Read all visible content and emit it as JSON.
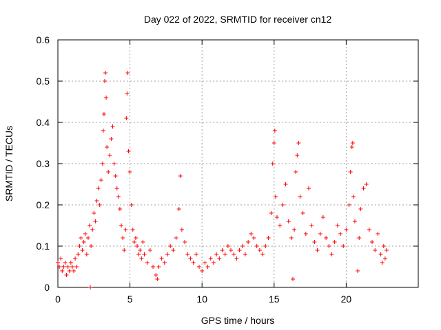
{
  "chart_data": {
    "type": "scatter",
    "title": "Day 022 of 2022, SRMTID for receiver cn12",
    "xlabel": "GPS time / hours",
    "ylabel": "SRMTID / TECUs",
    "xlim": [
      0,
      25
    ],
    "ylim": [
      0,
      0.6
    ],
    "xticks": [
      0,
      5,
      10,
      15,
      20
    ],
    "xtick_labels": [
      "0",
      "5",
      "10",
      "15",
      "20"
    ],
    "yticks": [
      0,
      0.1,
      0.2,
      0.3,
      0.4,
      0.5,
      0.6
    ],
    "ytick_labels": [
      "0",
      "0.1",
      "0.2",
      "0.3",
      "0.4",
      "0.5",
      "0.6"
    ],
    "grid": true,
    "marker": "+",
    "color": "#ff0000",
    "series": [
      {
        "name": "SRMTID",
        "points": [
          [
            0.0,
            0.06
          ],
          [
            0.1,
            0.05
          ],
          [
            0.2,
            0.07
          ],
          [
            0.3,
            0.04
          ],
          [
            0.4,
            0.05
          ],
          [
            0.5,
            0.06
          ],
          [
            0.6,
            0.03
          ],
          [
            0.7,
            0.05
          ],
          [
            0.8,
            0.04
          ],
          [
            0.9,
            0.06
          ],
          [
            1.0,
            0.05
          ],
          [
            1.1,
            0.04
          ],
          [
            1.2,
            0.07
          ],
          [
            1.3,
            0.05
          ],
          [
            1.4,
            0.08
          ],
          [
            1.5,
            0.1
          ],
          [
            1.6,
            0.12
          ],
          [
            1.7,
            0.09
          ],
          [
            1.8,
            0.11
          ],
          [
            1.9,
            0.13
          ],
          [
            2.0,
            0.08
          ],
          [
            2.1,
            0.12
          ],
          [
            2.2,
            0.15
          ],
          [
            2.25,
            0.0
          ],
          [
            2.3,
            0.1
          ],
          [
            2.4,
            0.14
          ],
          [
            2.5,
            0.18
          ],
          [
            2.6,
            0.16
          ],
          [
            2.7,
            0.21
          ],
          [
            2.8,
            0.24
          ],
          [
            2.9,
            0.2
          ],
          [
            3.0,
            0.26
          ],
          [
            3.1,
            0.3
          ],
          [
            3.15,
            0.38
          ],
          [
            3.2,
            0.42
          ],
          [
            3.25,
            0.5
          ],
          [
            3.3,
            0.52
          ],
          [
            3.35,
            0.46
          ],
          [
            3.4,
            0.34
          ],
          [
            3.5,
            0.28
          ],
          [
            3.6,
            0.32
          ],
          [
            3.7,
            0.36
          ],
          [
            3.8,
            0.39
          ],
          [
            3.9,
            0.3
          ],
          [
            4.0,
            0.27
          ],
          [
            4.1,
            0.24
          ],
          [
            4.2,
            0.22
          ],
          [
            4.3,
            0.19
          ],
          [
            4.4,
            0.15
          ],
          [
            4.5,
            0.12
          ],
          [
            4.6,
            0.09
          ],
          [
            4.7,
            0.14
          ],
          [
            4.75,
            0.41
          ],
          [
            4.8,
            0.47
          ],
          [
            4.85,
            0.52
          ],
          [
            4.9,
            0.33
          ],
          [
            5.0,
            0.28
          ],
          [
            5.1,
            0.2
          ],
          [
            5.2,
            0.14
          ],
          [
            5.3,
            0.11
          ],
          [
            5.4,
            0.12
          ],
          [
            5.5,
            0.1
          ],
          [
            5.6,
            0.08
          ],
          [
            5.7,
            0.09
          ],
          [
            5.8,
            0.07
          ],
          [
            5.9,
            0.11
          ],
          [
            6.0,
            0.08
          ],
          [
            6.2,
            0.06
          ],
          [
            6.4,
            0.09
          ],
          [
            6.6,
            0.05
          ],
          [
            6.8,
            0.03
          ],
          [
            6.9,
            0.02
          ],
          [
            7.0,
            0.05
          ],
          [
            7.2,
            0.07
          ],
          [
            7.4,
            0.06
          ],
          [
            7.6,
            0.08
          ],
          [
            7.8,
            0.1
          ],
          [
            8.0,
            0.09
          ],
          [
            8.2,
            0.12
          ],
          [
            8.4,
            0.19
          ],
          [
            8.5,
            0.27
          ],
          [
            8.6,
            0.14
          ],
          [
            8.8,
            0.11
          ],
          [
            9.0,
            0.08
          ],
          [
            9.2,
            0.07
          ],
          [
            9.4,
            0.06
          ],
          [
            9.6,
            0.08
          ],
          [
            9.8,
            0.05
          ],
          [
            10.0,
            0.04
          ],
          [
            10.2,
            0.06
          ],
          [
            10.4,
            0.05
          ],
          [
            10.6,
            0.07
          ],
          [
            10.8,
            0.06
          ],
          [
            11.0,
            0.08
          ],
          [
            11.2,
            0.07
          ],
          [
            11.4,
            0.09
          ],
          [
            11.6,
            0.08
          ],
          [
            11.8,
            0.1
          ],
          [
            12.0,
            0.09
          ],
          [
            12.2,
            0.08
          ],
          [
            12.4,
            0.07
          ],
          [
            12.6,
            0.09
          ],
          [
            12.8,
            0.1
          ],
          [
            13.0,
            0.08
          ],
          [
            13.2,
            0.11
          ],
          [
            13.4,
            0.13
          ],
          [
            13.6,
            0.12
          ],
          [
            13.8,
            0.1
          ],
          [
            14.0,
            0.09
          ],
          [
            14.2,
            0.08
          ],
          [
            14.4,
            0.1
          ],
          [
            14.6,
            0.12
          ],
          [
            14.8,
            0.18
          ],
          [
            14.9,
            0.3
          ],
          [
            15.0,
            0.35
          ],
          [
            15.05,
            0.38
          ],
          [
            15.1,
            0.22
          ],
          [
            15.2,
            0.17
          ],
          [
            15.4,
            0.15
          ],
          [
            15.6,
            0.2
          ],
          [
            15.8,
            0.25
          ],
          [
            16.0,
            0.16
          ],
          [
            16.2,
            0.12
          ],
          [
            16.3,
            0.02
          ],
          [
            16.4,
            0.14
          ],
          [
            16.5,
            0.28
          ],
          [
            16.6,
            0.32
          ],
          [
            16.7,
            0.35
          ],
          [
            16.8,
            0.22
          ],
          [
            17.0,
            0.18
          ],
          [
            17.2,
            0.13
          ],
          [
            17.4,
            0.24
          ],
          [
            17.6,
            0.15
          ],
          [
            17.8,
            0.11
          ],
          [
            18.0,
            0.09
          ],
          [
            18.2,
            0.13
          ],
          [
            18.4,
            0.17
          ],
          [
            18.6,
            0.12
          ],
          [
            18.8,
            0.1
          ],
          [
            19.0,
            0.08
          ],
          [
            19.2,
            0.11
          ],
          [
            19.4,
            0.15
          ],
          [
            19.6,
            0.13
          ],
          [
            19.8,
            0.1
          ],
          [
            20.0,
            0.14
          ],
          [
            20.2,
            0.2
          ],
          [
            20.3,
            0.28
          ],
          [
            20.4,
            0.34
          ],
          [
            20.45,
            0.35
          ],
          [
            20.5,
            0.22
          ],
          [
            20.6,
            0.16
          ],
          [
            20.8,
            0.04
          ],
          [
            20.9,
            0.12
          ],
          [
            21.0,
            0.19
          ],
          [
            21.2,
            0.24
          ],
          [
            21.4,
            0.25
          ],
          [
            21.6,
            0.14
          ],
          [
            21.8,
            0.11
          ],
          [
            22.0,
            0.09
          ],
          [
            22.2,
            0.13
          ],
          [
            22.4,
            0.08
          ],
          [
            22.5,
            0.06
          ],
          [
            22.6,
            0.1
          ],
          [
            22.7,
            0.07
          ],
          [
            22.8,
            0.09
          ]
        ]
      }
    ]
  }
}
